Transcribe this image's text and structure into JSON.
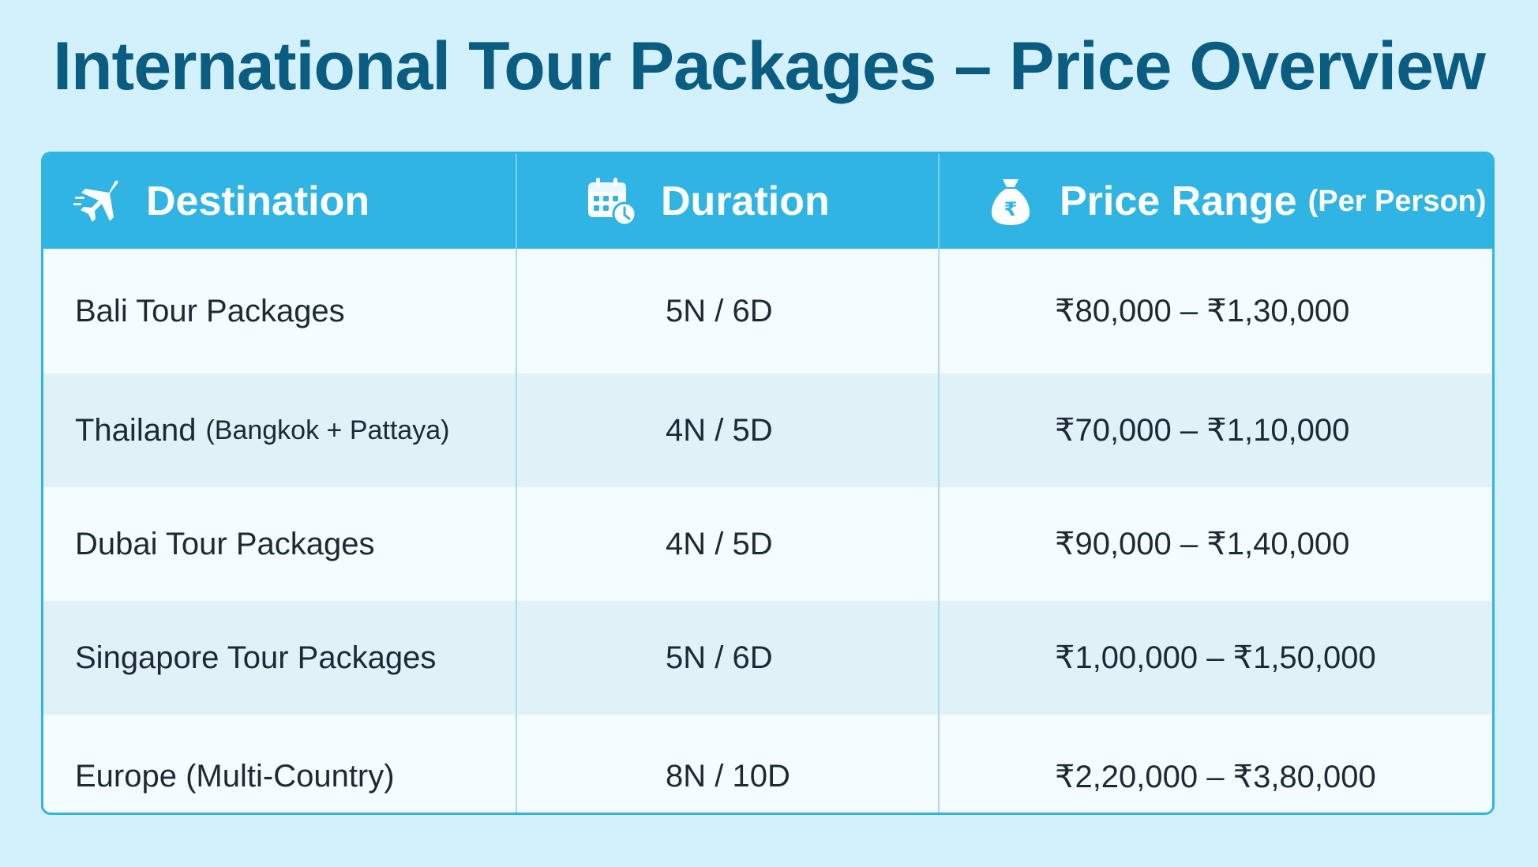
{
  "title": "International Tour Packages – Price Overview",
  "colors": {
    "background": "#d3f1fd",
    "title": "#0a5c80",
    "header": "#2fb4e4",
    "row_alt": "#e0f2f8"
  },
  "table": {
    "headers": {
      "destination": {
        "label": "Destination",
        "icon": "airplane-icon"
      },
      "duration": {
        "label": "Duration",
        "icon": "calendar-clock-icon"
      },
      "price": {
        "label": "Price Range",
        "sub": "(Per Person)",
        "icon": "money-bag-rupee-icon"
      }
    },
    "rows": [
      {
        "destination": "Bali Tour Packages",
        "destination_sub": "",
        "duration": "5N / 6D",
        "price": "₹80,000 – ₹1,30,000"
      },
      {
        "destination": "Thailand",
        "destination_sub": "(Bangkok + Pattaya)",
        "duration": "4N / 5D",
        "price": "₹70,000 – ₹1,10,000"
      },
      {
        "destination": "Dubai Tour Packages",
        "destination_sub": "",
        "duration": "4N / 5D",
        "price": "₹90,000 – ₹1,40,000"
      },
      {
        "destination": "Singapore Tour Packages",
        "destination_sub": "",
        "duration": "5N / 6D",
        "price": "₹1,00,000 – ₹1,50,000"
      },
      {
        "destination": "Europe (Multi-Country)",
        "destination_sub": "",
        "duration": "8N / 10D",
        "price": "₹2,20,000 – ₹3,80,000"
      }
    ]
  }
}
